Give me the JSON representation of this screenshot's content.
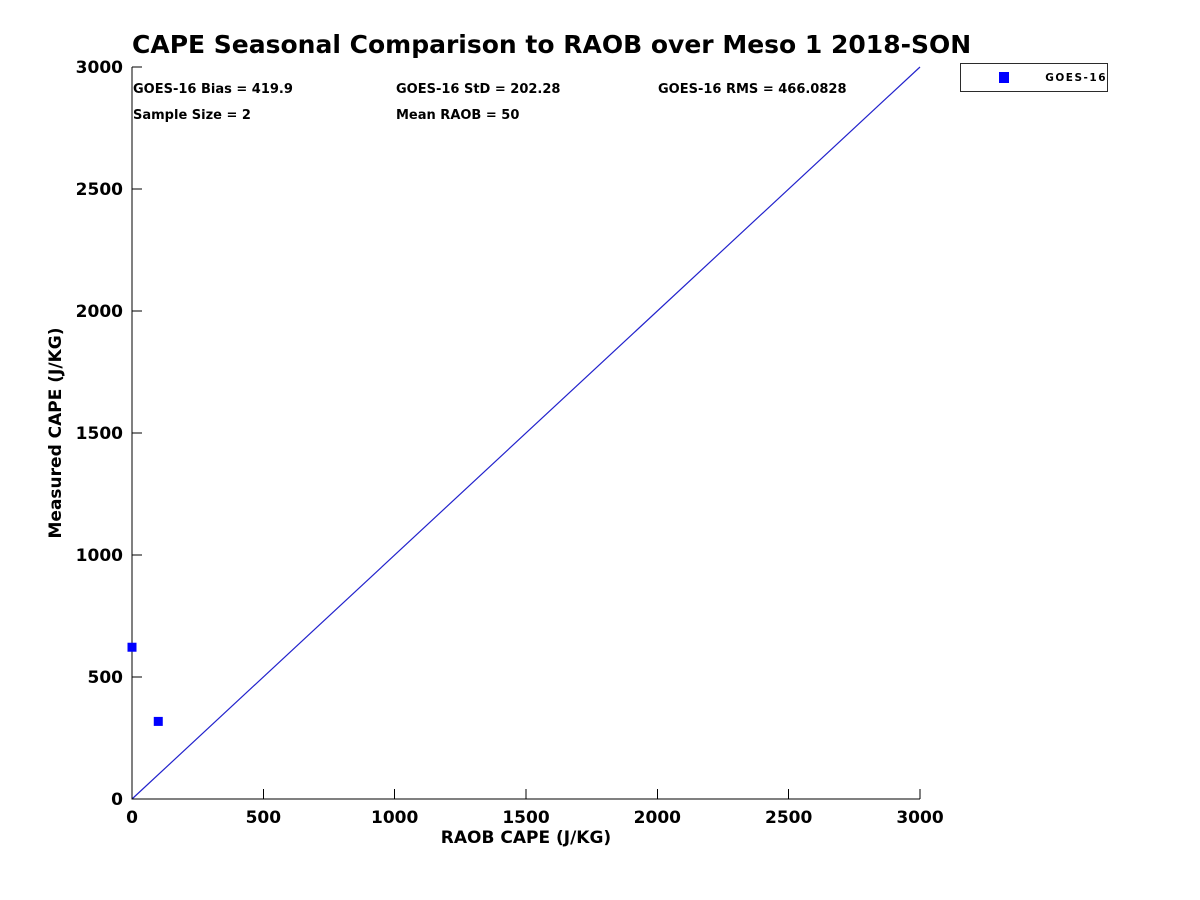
{
  "title": "CAPE Seasonal Comparison to RAOB over Meso 1 2018-SON",
  "stats": {
    "bias": "GOES-16 Bias = 419.9",
    "std": "GOES-16 StD = 202.28",
    "rms": "GOES-16 RMS = 466.0828",
    "sample_size": "Sample Size = 2",
    "mean_raob": "Mean RAOB = 50"
  },
  "legend": {
    "position": "top-right-outside",
    "entries": [
      {
        "label": "GOES-16",
        "marker": "square",
        "color": "#0000ff"
      }
    ]
  },
  "colors": {
    "background": "#ffffff",
    "axis": "#000000",
    "text": "#000000",
    "marker": "#0000ff",
    "identity_line": "#2222cc"
  },
  "chart_data": {
    "type": "scatter",
    "title": "CAPE Seasonal Comparison to RAOB over Meso 1 2018-SON",
    "xlabel": "RAOB CAPE (J/KG)",
    "ylabel": "Measured CAPE (J/KG)",
    "xlim": [
      0,
      3000
    ],
    "ylim": [
      0,
      3000
    ],
    "xticks": [
      0,
      500,
      1000,
      1500,
      2000,
      2500,
      3000
    ],
    "yticks": [
      0,
      500,
      1000,
      1500,
      2000,
      2500,
      3000
    ],
    "grid": false,
    "legend_position": "top-right-outside",
    "series": [
      {
        "name": "GOES-16",
        "type": "scatter",
        "marker": "square",
        "marker_size": 9,
        "color": "#0000ff",
        "points": [
          [
            0,
            622
          ],
          [
            100,
            318
          ]
        ]
      }
    ],
    "reference_line": {
      "name": "1:1 line",
      "x": [
        0,
        3000
      ],
      "y": [
        0,
        3000
      ],
      "color": "#2222cc"
    }
  }
}
